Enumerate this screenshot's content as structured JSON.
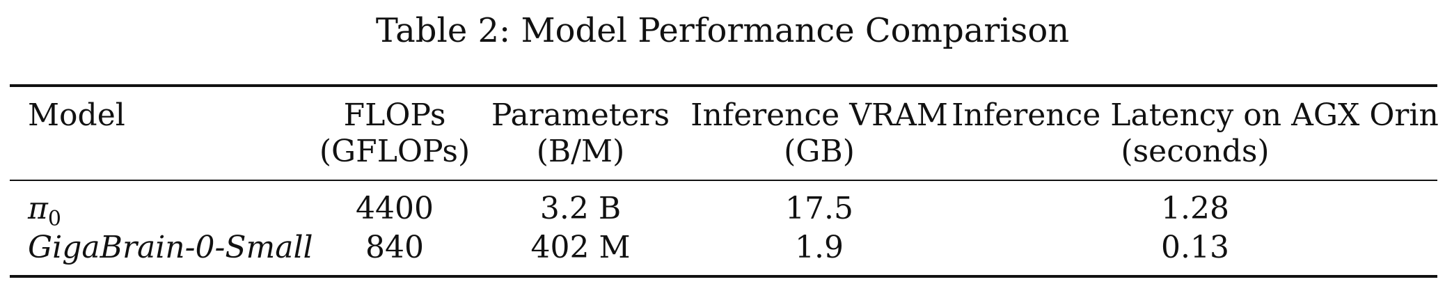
{
  "caption": "Table 2: Model Performance Comparison",
  "table": {
    "headers": [
      {
        "line1": "Model",
        "line2": ""
      },
      {
        "line1": "FLOPs",
        "line2": "(GFLOPs)"
      },
      {
        "line1": "Parameters",
        "line2": "(B/M)"
      },
      {
        "line1": "Inference VRAM",
        "line2": "(GB)"
      },
      {
        "line1": "Inference Latency on AGX Orin",
        "line2": "(seconds)"
      }
    ],
    "rows": [
      {
        "model": "π",
        "model_subscript": "0",
        "flops": "4400",
        "parameters": "3.2 B",
        "vram": "17.5",
        "latency": "1.28"
      },
      {
        "model": "GigaBrain-0-Small",
        "flops": "840",
        "parameters": "402 M",
        "vram": "1.9",
        "latency": "0.13"
      }
    ]
  }
}
